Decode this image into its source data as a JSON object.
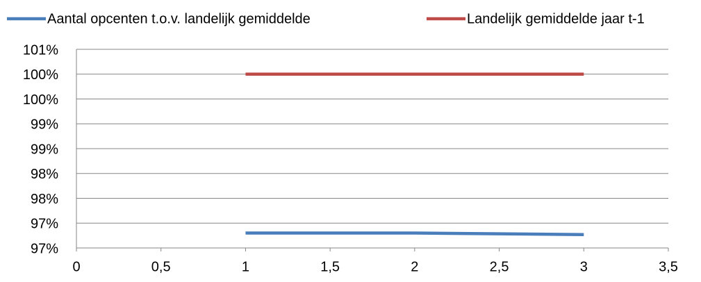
{
  "chart_data": {
    "type": "line",
    "x": [
      1,
      2,
      3
    ],
    "series": [
      {
        "name": "Aantal opcenten t.o.v. landelijk gemiddelde",
        "color": "#4a7ebb",
        "values": [
          96.8,
          96.8,
          96.77
        ]
      },
      {
        "name": "Landelijk gemiddelde jaar t-1",
        "color": "#be4b48",
        "values": [
          100,
          100,
          100
        ]
      }
    ],
    "xlim": [
      0,
      3.5
    ],
    "xticks": [
      0,
      {
        "value": 0.5,
        "label": "0,5"
      },
      1,
      {
        "value": 1.5,
        "label": "1,5"
      },
      2,
      {
        "value": 2.5,
        "label": "2,5"
      },
      3,
      {
        "value": 3.5,
        "label": "3,5"
      }
    ],
    "ylim": [
      96.5,
      100.5
    ],
    "yticks": [
      {
        "value": 96.5,
        "label": "97%"
      },
      {
        "value": 97,
        "label": "97%"
      },
      {
        "value": 97.5,
        "label": "98%"
      },
      {
        "value": 98,
        "label": "98%"
      },
      {
        "value": 98.5,
        "label": "99%"
      },
      {
        "value": 99,
        "label": "99%"
      },
      {
        "value": 99.5,
        "label": "100%"
      },
      {
        "value": 100,
        "label": "100%"
      },
      {
        "value": 100.5,
        "label": "101%"
      }
    ],
    "grid": true,
    "legend": "top"
  }
}
